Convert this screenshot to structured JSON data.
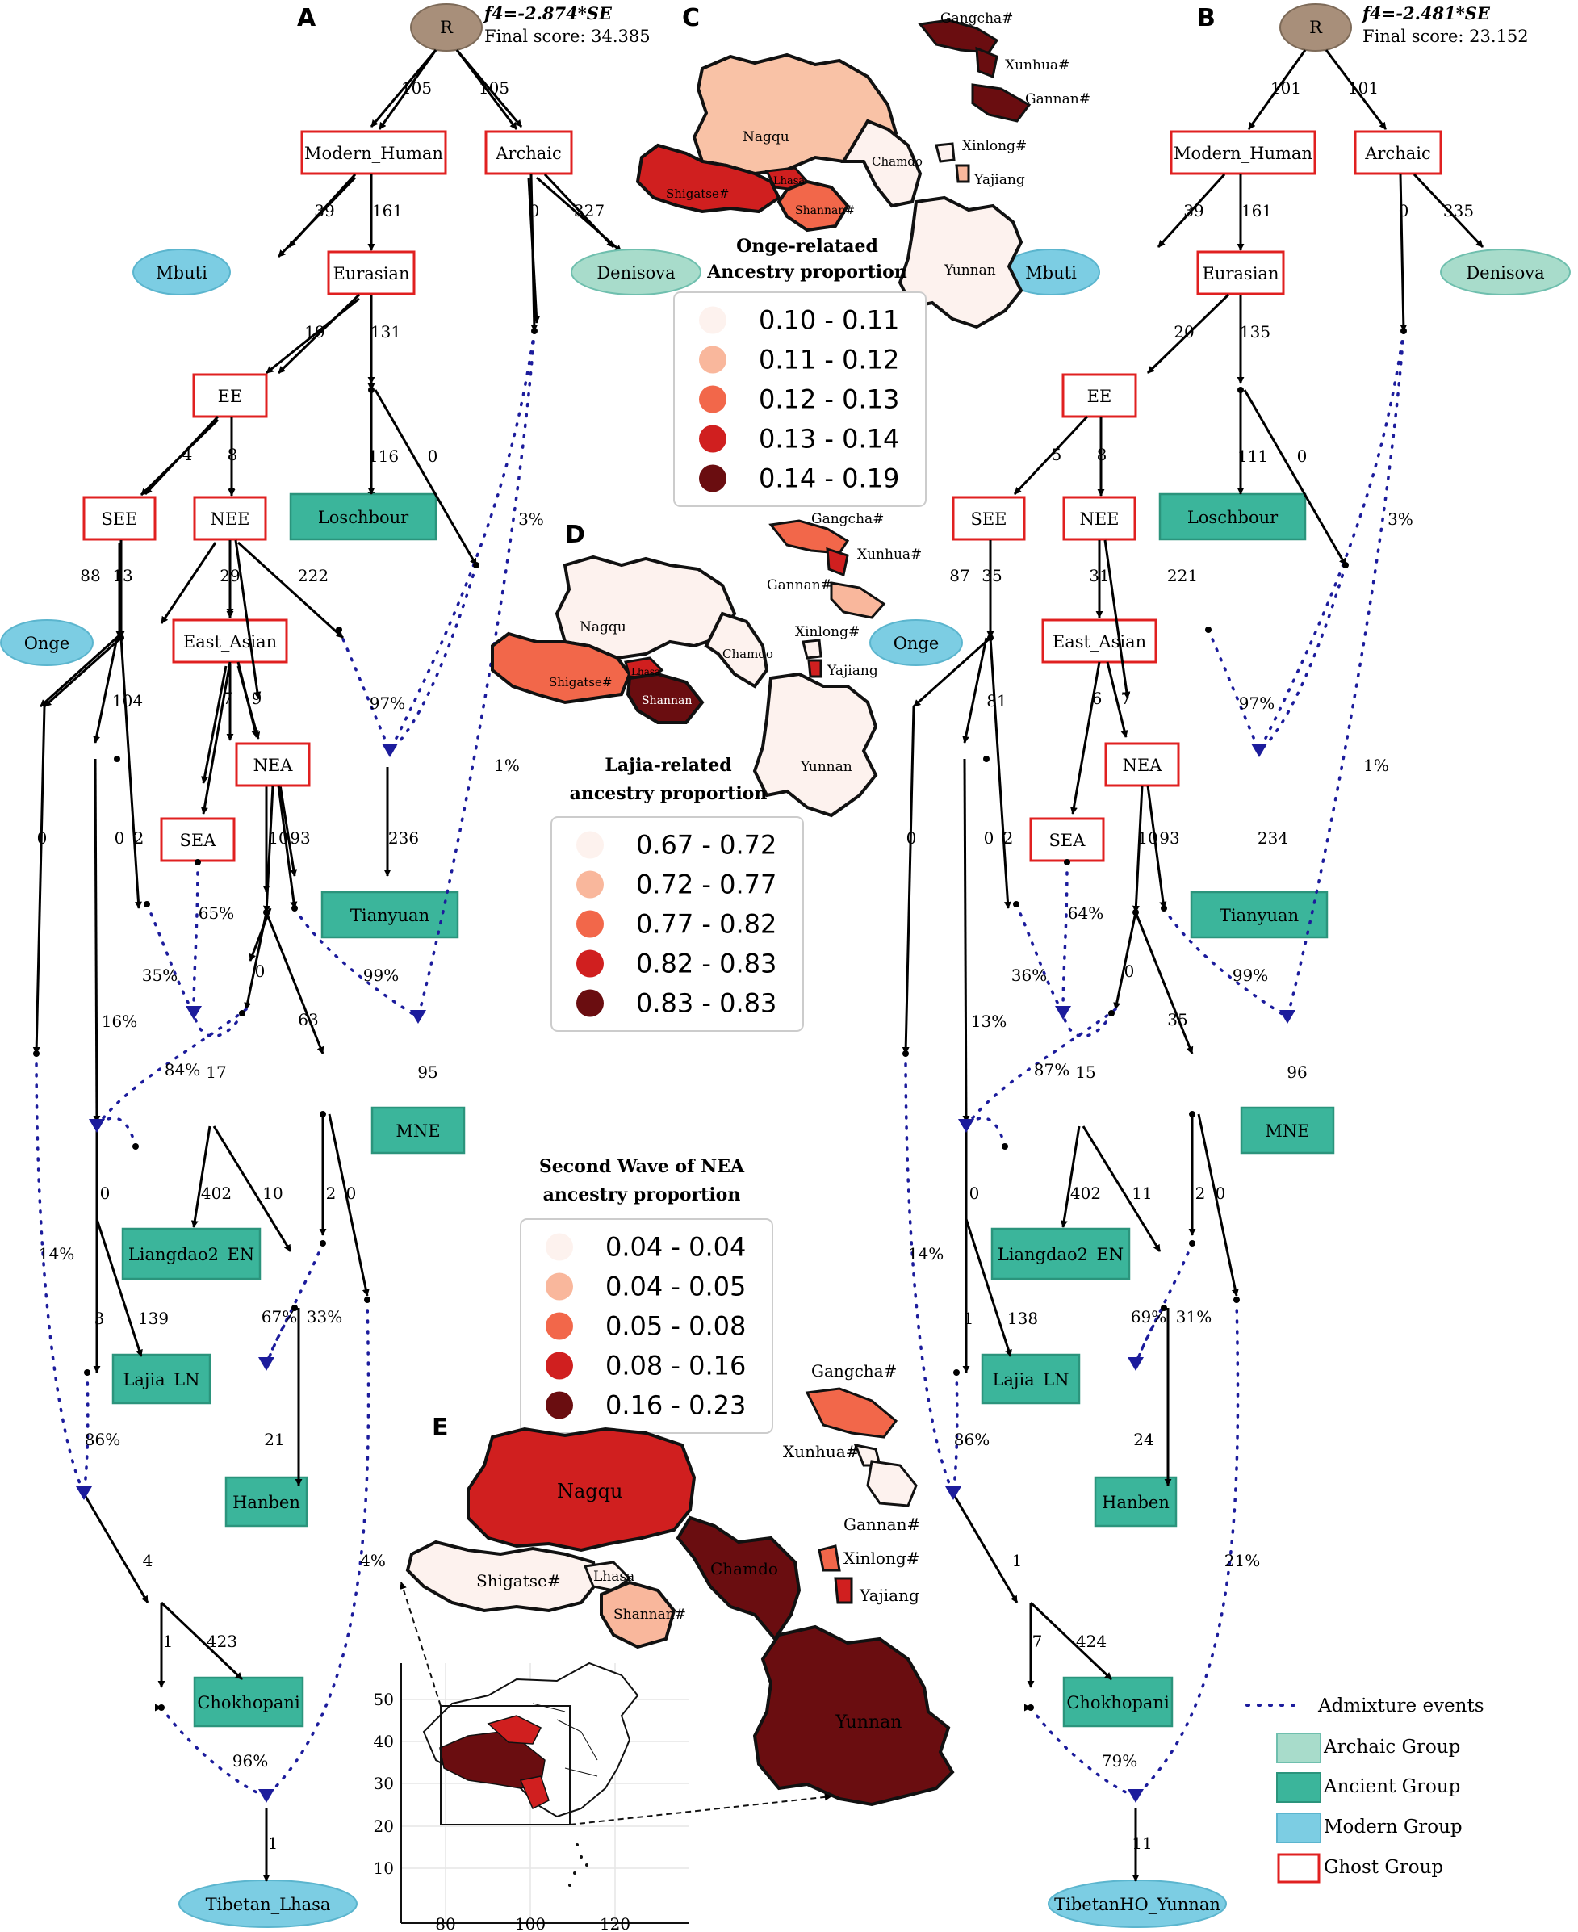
{
  "panel_a": {
    "letter": "A",
    "score_formula": "f4=-2.874*SE",
    "score_line": "Final score: 34.385",
    "root": "R",
    "nodes": {
      "modern_human": "Modern_Human",
      "archaic": "Archaic",
      "mbuti": "Mbuti",
      "eurasian": "Eurasian",
      "denisova": "Denisova",
      "ee": "EE",
      "see": "SEE",
      "nee": "NEE",
      "loschbour": "Loschbour",
      "onge": "Onge",
      "east_asian": "East_Asian",
      "nea": "NEA",
      "sea": "SEA",
      "tianyuan": "Tianyuan",
      "mne": "MNE",
      "liangdao": "Liangdao2_EN",
      "lajia": "Lajia_LN",
      "hanben": "Hanben",
      "chokhopani": "Chokhopani",
      "target": "Tibetan_Lhasa"
    },
    "edges": {
      "r_mh": "105",
      "r_ar": "105",
      "mh_mbuti": "39",
      "mh_eur": "161",
      "ar_down": "0",
      "ar_den": "327",
      "eur_ee": "19",
      "eur_down": "131",
      "ee_see": "4",
      "ee_nee": "8",
      "los": "116",
      "to_tian": "0",
      "see_onge": "88",
      "see_down": "13",
      "nee_ea": "29",
      "nee_right": "222",
      "onge_left": "104",
      "left0": "0",
      "mid0": "0",
      "mid2": "2",
      "ea_sea": "7",
      "ea_nea": "9",
      "nea_l": "10",
      "nea_r": "93",
      "tian": "236",
      "nea0": "0",
      "nea63": "63",
      "sea_mix": "17",
      "mne": "95",
      "liang": "402",
      "liang10": "10",
      "two": "2",
      "zero": "0",
      "lajia_0": "0",
      "lajia_3": "3",
      "lajia_139": "139",
      "hanben": "21",
      "chok_4": "4",
      "chok_1": "1",
      "chok_423": "423",
      "final": "1"
    },
    "percents": {
      "arch3": "3%",
      "p97": "97%",
      "p1": "1%",
      "p65": "65%",
      "p35": "35%",
      "p99": "99%",
      "p16": "16%",
      "p84": "84%",
      "p14": "14%",
      "p67": "67%",
      "p33": "33%",
      "p86": "86%",
      "p4": "4%",
      "p96": "96%"
    }
  },
  "panel_b": {
    "letter": "B",
    "score_formula": "f4=-2.481*SE",
    "score_line": "Final score: 23.152",
    "root": "R",
    "nodes": {
      "modern_human": "Modern_Human",
      "archaic": "Archaic",
      "mbuti": "Mbuti",
      "eurasian": "Eurasian",
      "denisova": "Denisova",
      "ee": "EE",
      "see": "SEE",
      "nee": "NEE",
      "loschbour": "Loschbour",
      "onge": "Onge",
      "east_asian": "East_Asian",
      "nea": "NEA",
      "sea": "SEA",
      "tianyuan": "Tianyuan",
      "mne": "MNE",
      "liangdao": "Liangdao2_EN",
      "lajia": "Lajia_LN",
      "hanben": "Hanben",
      "chokhopani": "Chokhopani",
      "target": "TibetanHO_Yunnan"
    },
    "edges": {
      "r_mh": "101",
      "r_ar": "101",
      "mh_mbuti": "39",
      "mh_eur": "161",
      "ar_down": "0",
      "ar_den": "335",
      "eur_ee": "20",
      "eur_down": "135",
      "ee_see": "5",
      "ee_nee": "8",
      "los": "111",
      "to_tian": "0",
      "see_onge": "87",
      "see_down": "35",
      "nee_ea": "31",
      "nee_right": "221",
      "onge_left": "81",
      "left0": "0",
      "mid0": "0",
      "mid2": "2",
      "ea_sea": "6",
      "ea_nea": "7",
      "nea_l": "10",
      "nea_r": "93",
      "tian": "234",
      "nea0": "0",
      "nea63": "35",
      "sea_mix": "15",
      "mne": "96",
      "liang": "402",
      "liang10": "11",
      "two": "2",
      "zero": "0",
      "lajia_0": "0",
      "lajia_3": "1",
      "lajia_139": "138",
      "hanben": "24",
      "chok_4": "1",
      "chok_1": "7",
      "chok_423": "424",
      "final": "11"
    },
    "percents": {
      "arch3": "3%",
      "p97": "97%",
      "p1": "1%",
      "p65": "64%",
      "p35": "36%",
      "p99": "99%",
      "p16": "13%",
      "p84": "87%",
      "p14": "14%",
      "p67": "69%",
      "p33": "31%",
      "p86": "86%",
      "p4": "21%",
      "p96": "79%"
    }
  },
  "map_c": {
    "letter": "C",
    "title_line1": "Onge-relataed",
    "title_line2": "Ancestry proportion",
    "legend": [
      "0.10 - 0.11",
      "0.11 - 0.12",
      "0.12 - 0.13",
      "0.13 - 0.14",
      "0.14 - 0.19"
    ],
    "regions": {
      "nagqu": "Nagqu",
      "shigatse": "Shigatse#",
      "lhasa": "Lhasa",
      "shannan": "Shannan#",
      "chamdo": "Chamdo",
      "yunnan": "Yunnan",
      "gangcha": "Gangcha#",
      "xunhua": "Xunhua#",
      "gannan": "Gannan#",
      "xinlong": "Xinlong#",
      "yajiang": "Yajiang"
    }
  },
  "map_d": {
    "letter": "D",
    "title_line1": "Lajia-related",
    "title_line2": "ancestry proportion",
    "legend": [
      "0.67 - 0.72",
      "0.72 - 0.77",
      "0.77 - 0.82",
      "0.82 - 0.83",
      "0.83 - 0.83"
    ],
    "regions": {
      "nagqu": "Nagqu",
      "shigatse": "Shigatse#",
      "lhasa": "Lhasa",
      "shannan": "Shannan",
      "chamdo": "Chamdo",
      "yunnan": "Yunnan",
      "gangcha": "Gangcha#",
      "xunhua": "Xunhua#",
      "gannan": "Gannan#",
      "xinlong": "Xinlong#",
      "yajiang": "Yajiang"
    }
  },
  "map_e": {
    "letter": "E",
    "title_line1": "Second Wave of NEA",
    "title_line2": "ancestry proportion",
    "legend": [
      "0.04 - 0.04",
      "0.04 - 0.05",
      "0.05 - 0.08",
      "0.08 - 0.16",
      "0.16 - 0.23"
    ],
    "regions": {
      "nagqu": "Nagqu",
      "shigatse": "Shigatse#",
      "lhasa": "Lhasa",
      "shannan": "Shannan#",
      "chamdo": "Chamdo",
      "yunnan": "Yunnan",
      "gangcha": "Gangcha#",
      "xunhua": "Xunhua#",
      "gannan": "Gannan#",
      "xinlong": "Xinlong#",
      "yajiang": "Yajiang"
    },
    "inset": {
      "y_ticks": [
        "50",
        "40",
        "30",
        "20",
        "10"
      ],
      "x_ticks": [
        "80",
        "100",
        "120"
      ]
    }
  },
  "legend": {
    "admixture": "Admixture events",
    "archaic": "Archaic Group",
    "ancient": "Ancient Group",
    "modern": "Modern Group",
    "ghost": "Ghost Group"
  },
  "colors": {
    "ghost_border": "#e02020",
    "archaic_fill": "#a8dccb",
    "ancient_fill": "#3bb59b",
    "modern_fill": "#7ccde3",
    "root_fill": "#a88f7a",
    "admix": "#1c1c9c",
    "scale": [
      "#fdf2ee",
      "#f9b79c",
      "#f2674a",
      "#d01f1f",
      "#6a0d10"
    ]
  }
}
